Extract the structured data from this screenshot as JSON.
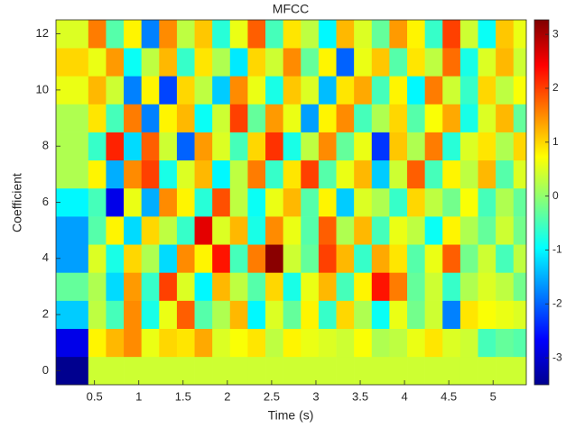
{
  "chart_data": {
    "type": "heatmap",
    "title": "MFCC",
    "xlabel": "Time (s)",
    "ylabel": "Coefficient",
    "colormap": "jet",
    "xbins": [
      0.065,
      0.43,
      0.63,
      0.83,
      1.03,
      1.23,
      1.43,
      1.63,
      1.83,
      2.03,
      2.23,
      2.43,
      2.63,
      2.83,
      3.03,
      3.23,
      3.43,
      3.63,
      3.83,
      4.03,
      4.23,
      4.43,
      4.63,
      4.83,
      5.03,
      5.23,
      5.375
    ],
    "y": [
      0,
      1,
      2,
      3,
      4,
      5,
      6,
      7,
      8,
      9,
      10,
      11,
      12
    ],
    "values": [
      [
        -3.4,
        0.4,
        0.4,
        0.4,
        0.4,
        0.4,
        0.4,
        0.4,
        0.4,
        0.4,
        0.4,
        0.4,
        0.4,
        0.4,
        0.4,
        0.4,
        0.4,
        0.4,
        0.4,
        0.4,
        0.4,
        0.4,
        0.4,
        0.4,
        0.4,
        0.4
      ],
      [
        -2.8,
        0.8,
        1.2,
        1.5,
        0.6,
        1.0,
        0.9,
        1.3,
        0.5,
        0.7,
        0.9,
        0.3,
        0.8,
        0.6,
        0.5,
        0.4,
        0.7,
        0.2,
        0.3,
        0.6,
        0.9,
        0.5,
        0.4,
        -0.5,
        -0.3,
        -0.4
      ],
      [
        -1.3,
        0.3,
        -0.5,
        1.5,
        -0.8,
        0.6,
        1.8,
        -0.4,
        0.2,
        1.2,
        -1.0,
        0.5,
        -0.3,
        0.8,
        -0.6,
        1.0,
        0.2,
        -0.9,
        0.6,
        -0.2,
        0.4,
        -1.8,
        0.9,
        0.7,
        0.6,
        0.5
      ],
      [
        -0.3,
        0.2,
        -1.2,
        1.4,
        -0.6,
        2.0,
        0.5,
        -1.0,
        1.2,
        0.3,
        -0.4,
        1.0,
        -0.8,
        0.6,
        1.2,
        -0.5,
        0.8,
        2.3,
        1.6,
        -0.3,
        0.4,
        -0.6,
        0.2,
        0.5,
        0.3,
        -0.2
      ],
      [
        -1.6,
        0.5,
        -0.8,
        1.0,
        0.2,
        -1.2,
        1.5,
        0.8,
        2.3,
        -0.5,
        1.6,
        3.2,
        0.4,
        -0.3,
        2.0,
        1.2,
        -0.6,
        1.3,
        0.9,
        -0.4,
        0.6,
        1.8,
        -0.2,
        0.4,
        -0.5,
        0.3
      ],
      [
        -1.6,
        -0.4,
        0.8,
        -1.2,
        1.0,
        0.3,
        -0.6,
        2.6,
        0.5,
        1.2,
        -0.8,
        1.5,
        0.6,
        -0.4,
        1.8,
        0.2,
        1.2,
        -0.5,
        0.6,
        0.3,
        -0.9,
        0.8,
        0.2,
        -0.3,
        0.4,
        -0.2
      ],
      [
        -1.0,
        -0.5,
        -2.8,
        0.6,
        -1.5,
        1.5,
        0.8,
        -0.7,
        1.9,
        0.3,
        -0.9,
        0.6,
        1.2,
        -0.4,
        0.8,
        -1.3,
        0.5,
        0.2,
        -0.6,
        1.0,
        0.3,
        -0.2,
        0.7,
        -0.5,
        0.2,
        -0.3
      ],
      [
        0.2,
        0.8,
        -1.5,
        1.5,
        2.0,
        -0.8,
        0.5,
        1.2,
        -1.0,
        0.3,
        1.6,
        -0.6,
        0.9,
        2.0,
        -0.4,
        0.6,
        1.2,
        -1.3,
        0.4,
        1.8,
        -0.5,
        0.8,
        0.3,
        1.2,
        -0.4,
        0.5
      ],
      [
        0.2,
        -0.6,
        2.2,
        -1.2,
        1.8,
        0.4,
        -2.0,
        1.4,
        0.5,
        -0.5,
        1.0,
        2.1,
        -0.8,
        0.3,
        1.5,
        -0.3,
        0.6,
        -2.3,
        1.1,
        0.2,
        1.6,
        -0.7,
        0.5,
        0.9,
        0.2,
        1.0
      ],
      [
        0.2,
        0.9,
        -0.5,
        1.6,
        -1.8,
        0.8,
        1.2,
        -0.9,
        0.4,
        2.0,
        -0.3,
        1.4,
        0.6,
        -1.6,
        0.8,
        1.5,
        -0.5,
        0.2,
        1.0,
        -0.4,
        0.7,
        1.3,
        -0.8,
        0.5,
        1.2,
        -0.3
      ],
      [
        0.6,
        1.2,
        0.4,
        -1.8,
        0.8,
        -2.2,
        1.0,
        0.3,
        -1.3,
        1.5,
        0.6,
        -0.8,
        1.1,
        0.5,
        -1.4,
        0.9,
        1.3,
        -0.5,
        0.8,
        -1.0,
        1.6,
        0.4,
        -0.6,
        1.0,
        0.3,
        0.7
      ],
      [
        1.0,
        0.6,
        1.4,
        -0.9,
        0.3,
        1.2,
        -0.6,
        0.9,
        0.2,
        -1.1,
        1.0,
        0.4,
        1.5,
        -0.3,
        0.8,
        -2.0,
        0.6,
        1.1,
        -0.4,
        0.9,
        0.3,
        1.7,
        -0.8,
        0.5,
        1.2,
        0.4
      ],
      [
        0.5,
        1.6,
        -0.4,
        0.8,
        -1.8,
        1.5,
        0.3,
        1.1,
        -0.7,
        0.6,
        1.8,
        -0.5,
        0.9,
        0.3,
        -1.0,
        1.2,
        0.5,
        -0.3,
        1.4,
        0.8,
        -0.6,
        2.0,
        0.4,
        -0.9,
        1.1,
        0.6
      ]
    ],
    "xlim": [
      0.065,
      5.375
    ],
    "xticks": [
      0.5,
      1,
      1.5,
      2,
      2.5,
      3,
      3.5,
      4,
      4.5,
      5
    ],
    "ylim": [
      -0.5,
      12.5
    ],
    "yticks": [
      0,
      2,
      4,
      6,
      8,
      10,
      12
    ],
    "clim": [
      -3.5,
      3.27
    ],
    "cticks": [
      -3,
      -2,
      -1,
      0,
      1,
      2,
      3
    ]
  }
}
